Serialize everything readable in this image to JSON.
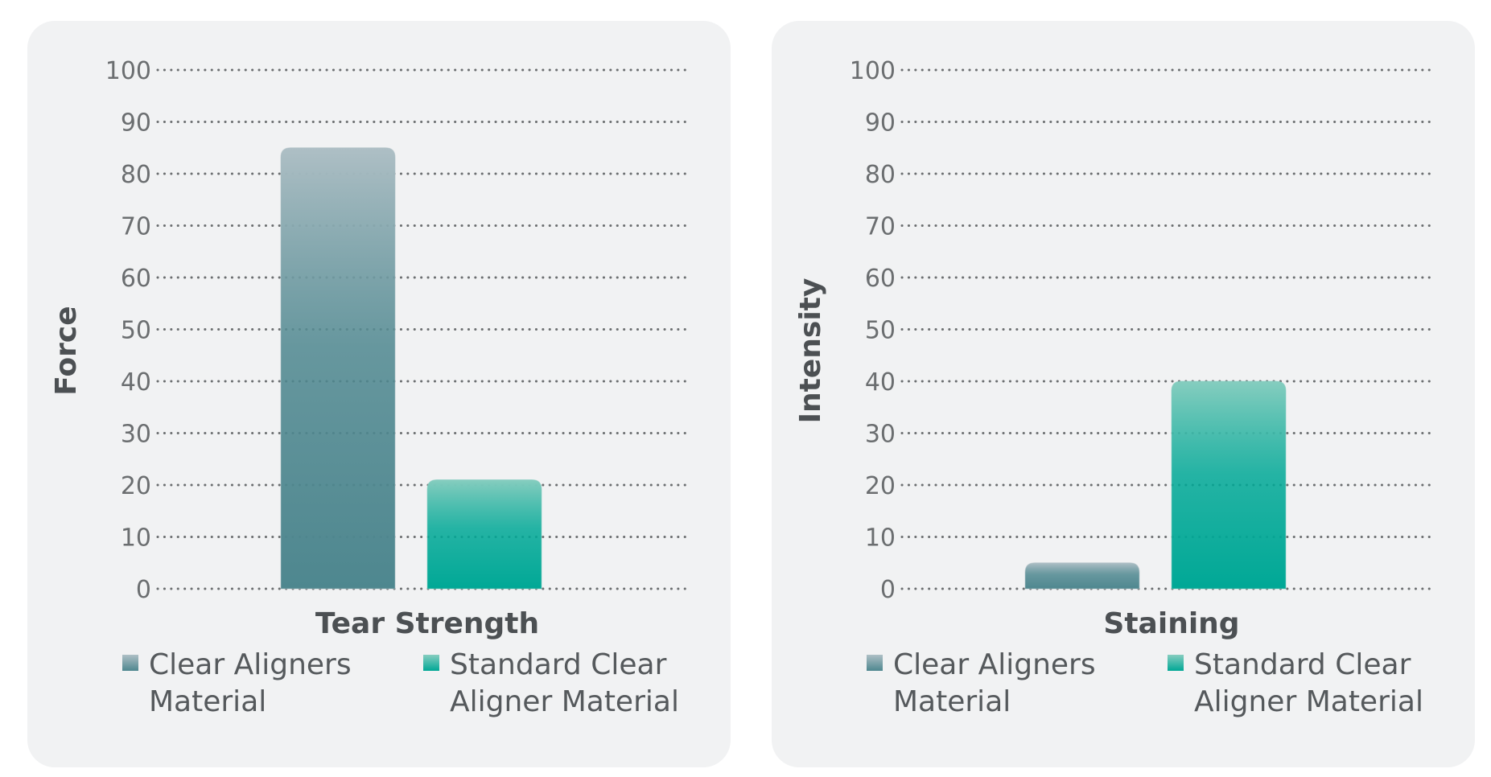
{
  "chart_data": [
    {
      "type": "bar",
      "title": "",
      "xlabel": "Tear Strength",
      "ylabel": "Force",
      "ylim": [
        0,
        100
      ],
      "yticks": [
        "0",
        "10",
        "20",
        "30",
        "40",
        "50",
        "60",
        "70",
        "80",
        "90",
        "100"
      ],
      "grid": true,
      "legend_position": "bottom",
      "categories": [
        "Tear Strength"
      ],
      "series": [
        {
          "name": "Clear Aligners Material",
          "legend_lines": [
            "Clear Aligners",
            "Material"
          ],
          "values": [
            85
          ],
          "color_top": "#aebfc5",
          "color_bottom": "#4e878f"
        },
        {
          "name": "Standard Clear Aligner Material",
          "legend_lines": [
            "Standard Clear",
            "Aligner Material"
          ],
          "values": [
            21
          ],
          "color_top": "#86cdbf",
          "color_bottom": "#00a896"
        }
      ]
    },
    {
      "type": "bar",
      "title": "",
      "xlabel": "Staining",
      "ylabel": "Intensity",
      "ylim": [
        0,
        100
      ],
      "yticks": [
        "0",
        "10",
        "20",
        "30",
        "40",
        "50",
        "60",
        "70",
        "80",
        "90",
        "100"
      ],
      "grid": true,
      "legend_position": "bottom",
      "categories": [
        "Staining"
      ],
      "series": [
        {
          "name": "Clear Aligners Material",
          "legend_lines": [
            "Clear Aligners",
            "Material"
          ],
          "values": [
            5
          ],
          "color_top": "#aebfc5",
          "color_bottom": "#4e878f"
        },
        {
          "name": "Standard Clear Aligner Material",
          "legend_lines": [
            "Standard Clear",
            "Aligner Material"
          ],
          "values": [
            40
          ],
          "color_top": "#86cdbf",
          "color_bottom": "#00a896"
        }
      ]
    }
  ]
}
